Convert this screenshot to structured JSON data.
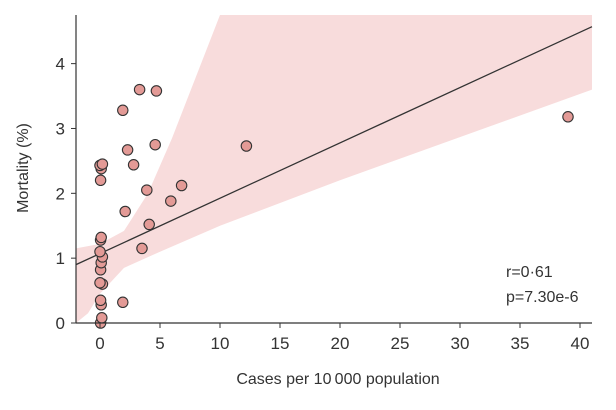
{
  "chart_data": {
    "type": "scatter",
    "title": "",
    "xlabel": "Cases per 10 000 population",
    "ylabel": "Mortality (%)",
    "xlim": [
      -2,
      41
    ],
    "ylim": [
      0,
      4.75
    ],
    "xticks": [
      0,
      5,
      10,
      15,
      20,
      25,
      30,
      35,
      40
    ],
    "yticks": [
      0,
      1,
      2,
      3,
      4
    ],
    "grid": false,
    "points": [
      {
        "x": 0.05,
        "y": 0.0
      },
      {
        "x": 0.15,
        "y": 0.08
      },
      {
        "x": 0.1,
        "y": 0.28
      },
      {
        "x": 0.05,
        "y": 0.35
      },
      {
        "x": 0.2,
        "y": 0.6
      },
      {
        "x": 0.0,
        "y": 0.62
      },
      {
        "x": 0.05,
        "y": 0.82
      },
      {
        "x": 0.1,
        "y": 0.93
      },
      {
        "x": 0.2,
        "y": 1.02
      },
      {
        "x": 0.0,
        "y": 1.1
      },
      {
        "x": 0.05,
        "y": 1.28
      },
      {
        "x": 0.1,
        "y": 1.32
      },
      {
        "x": 0.05,
        "y": 2.2
      },
      {
        "x": 0.1,
        "y": 2.38
      },
      {
        "x": 0.0,
        "y": 2.43
      },
      {
        "x": 0.2,
        "y": 2.45
      },
      {
        "x": 1.9,
        "y": 0.32
      },
      {
        "x": 2.1,
        "y": 1.72
      },
      {
        "x": 2.3,
        "y": 2.67
      },
      {
        "x": 1.9,
        "y": 3.28
      },
      {
        "x": 2.8,
        "y": 2.44
      },
      {
        "x": 3.3,
        "y": 3.6
      },
      {
        "x": 3.5,
        "y": 1.15
      },
      {
        "x": 3.9,
        "y": 2.05
      },
      {
        "x": 4.1,
        "y": 1.52
      },
      {
        "x": 4.6,
        "y": 2.75
      },
      {
        "x": 4.7,
        "y": 3.58
      },
      {
        "x": 5.9,
        "y": 1.88
      },
      {
        "x": 6.8,
        "y": 2.12
      },
      {
        "x": 12.2,
        "y": 2.73
      },
      {
        "x": 39.0,
        "y": 3.18
      }
    ],
    "fit_line": {
      "x": [
        -2,
        41
      ],
      "y": [
        0.9,
        4.57
      ]
    },
    "confidence_band": {
      "upper": [
        {
          "x": -2,
          "y": 1.15
        },
        {
          "x": 0,
          "y": 1.22
        },
        {
          "x": 2,
          "y": 1.42
        },
        {
          "x": 4,
          "y": 2.0
        },
        {
          "x": 6,
          "y": 2.85
        },
        {
          "x": 8,
          "y": 3.8
        },
        {
          "x": 10,
          "y": 4.75
        },
        {
          "x": 41,
          "y": 4.75
        }
      ],
      "lower": [
        {
          "x": 41,
          "y": 3.6
        },
        {
          "x": 20,
          "y": 2.2
        },
        {
          "x": 10,
          "y": 1.5
        },
        {
          "x": 5,
          "y": 1.1
        },
        {
          "x": 2,
          "y": 0.85
        },
        {
          "x": 0,
          "y": 0.45
        },
        {
          "x": -1,
          "y": 0.15
        },
        {
          "x": -2,
          "y": 0.0
        }
      ]
    },
    "annotations": [
      "r=0·61",
      "p=7.30e-6"
    ],
    "colors": {
      "point_fill": "#e39a96",
      "point_stroke": "#333333",
      "band": "#f8dcdc",
      "line": "#333333",
      "axis": "#333333"
    }
  }
}
